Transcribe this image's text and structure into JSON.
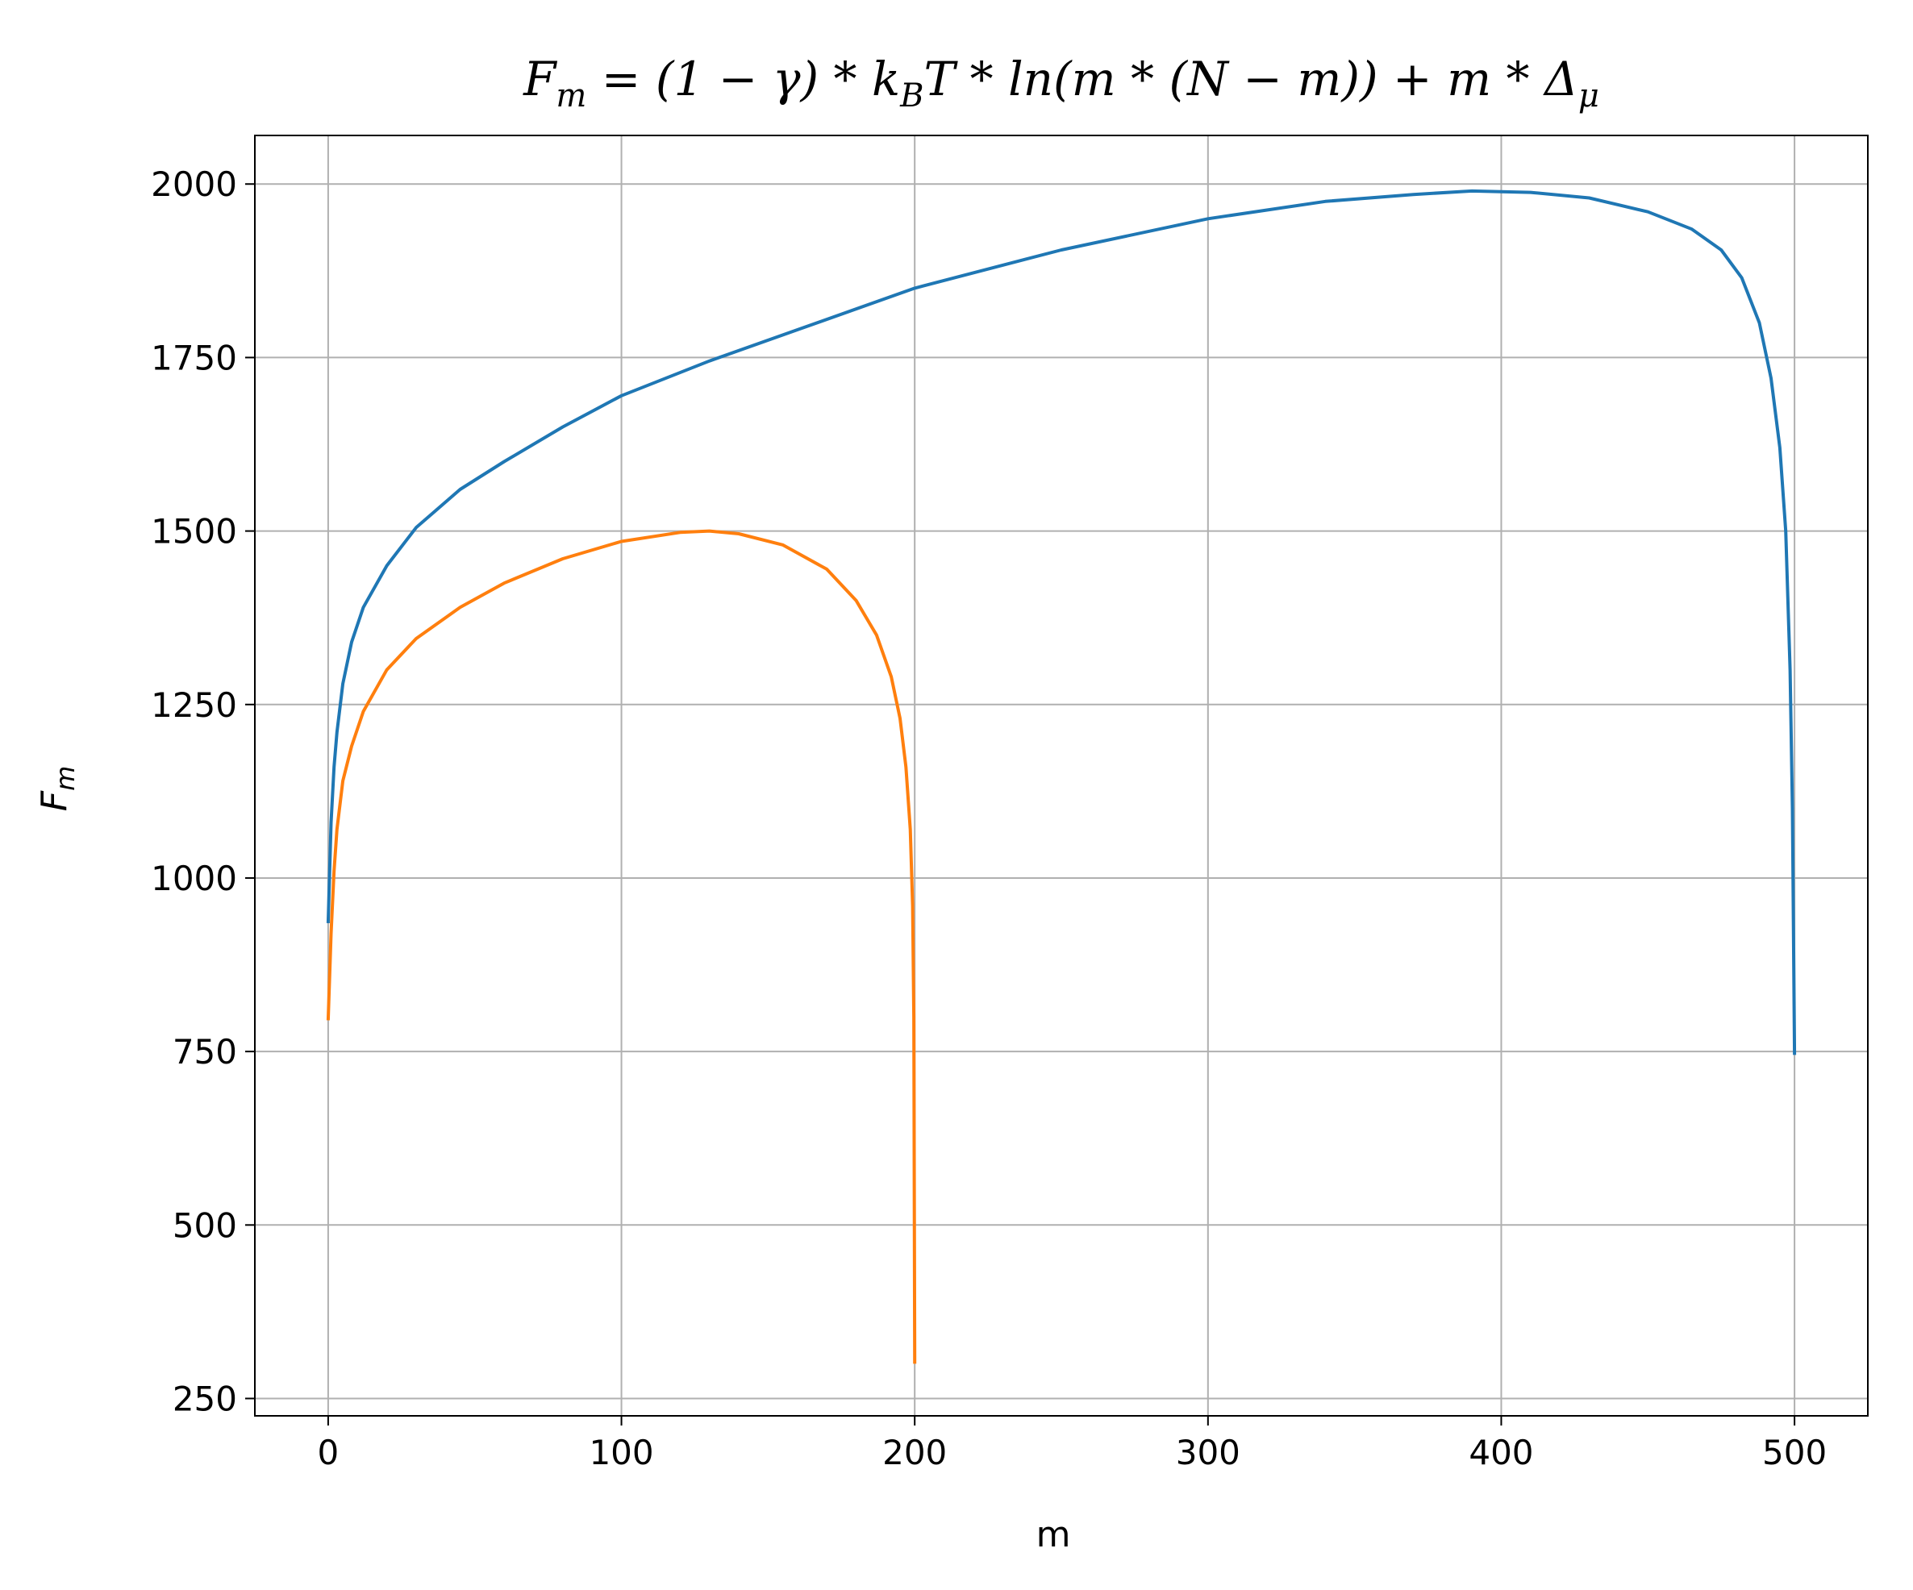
{
  "chart_data": {
    "type": "line",
    "title": "F_m = (1 − γ) * k_B T * ln(m * (N − m)) + m * Δ_μ",
    "title_parts": {
      "F": "F",
      "F_sub": "m",
      "mid1": " = (1 − γ) * k",
      "k_sub": "B",
      "mid2": "T * ln(m * (N − m)) + m * Δ",
      "delta_sub": "μ"
    },
    "xlabel": "m",
    "ylabel": {
      "main": "F",
      "sub": "m"
    },
    "xlim": [
      -25,
      525
    ],
    "ylim": [
      225,
      2070
    ],
    "x_ticks": [
      0,
      100,
      200,
      300,
      400,
      500
    ],
    "y_ticks": [
      250,
      500,
      750,
      1000,
      1250,
      1500,
      1750,
      2000
    ],
    "grid": true,
    "series": [
      {
        "color": "#1f77b4",
        "x": [
          0,
          1,
          2,
          3,
          5,
          8,
          12,
          20,
          30,
          45,
          60,
          80,
          100,
          130,
          160,
          200,
          250,
          300,
          340,
          370,
          390,
          410,
          430,
          450,
          465,
          475,
          482,
          488,
          492,
          495,
          497,
          498.5,
          499.3,
          500
        ],
        "y": [
          935,
          1080,
          1160,
          1210,
          1280,
          1340,
          1390,
          1450,
          1505,
          1560,
          1600,
          1650,
          1695,
          1745,
          1790,
          1850,
          1905,
          1950,
          1975,
          1985,
          1990,
          1988,
          1980,
          1960,
          1935,
          1905,
          1865,
          1800,
          1720,
          1620,
          1500,
          1300,
          1100,
          745
        ]
      },
      {
        "color": "#ff7f0e",
        "x": [
          0,
          1,
          2,
          3,
          5,
          8,
          12,
          20,
          30,
          45,
          60,
          80,
          100,
          120,
          130,
          140,
          155,
          170,
          180,
          187,
          192,
          195,
          197,
          198.5,
          199.3,
          199.7,
          200
        ],
        "y": [
          795,
          920,
          1010,
          1070,
          1140,
          1190,
          1240,
          1300,
          1345,
          1390,
          1425,
          1460,
          1485,
          1498,
          1500,
          1496,
          1480,
          1445,
          1400,
          1350,
          1290,
          1230,
          1160,
          1070,
          960,
          800,
          300
        ]
      }
    ]
  }
}
